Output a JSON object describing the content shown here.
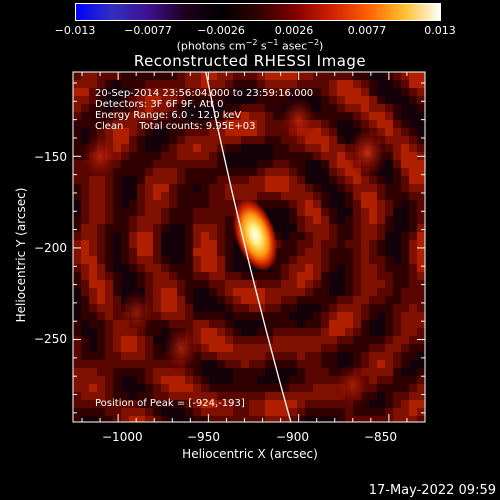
{
  "colorbar": {
    "ticks": [
      "−0.013",
      "−0.0077",
      "−0.0026",
      "0.0026",
      "0.0077",
      "0.013"
    ],
    "units_prefix": "(photons cm",
    "units_exp1": "−2",
    "units_mid1": " s",
    "units_exp2": "−1",
    "units_mid2": " asec",
    "units_exp3": "−2",
    "units_suffix": ")",
    "colormap": [
      "#0000ff",
      "#3030c0",
      "#401090",
      "#200020",
      "#000000",
      "#300000",
      "#800000",
      "#d02000",
      "#ff6000",
      "#ffc030",
      "#ffffff"
    ]
  },
  "title": "Reconstructed RHESSI Image",
  "info_lines": [
    "20-Sep-2014 23:56:04.000 to 23:59:16.000",
    "Detectors: 3F 6F 9F, Att 0",
    "Energy Range: 6.0 - 12.0 keV",
    "Clean     Total counts: 9.95E+03"
  ],
  "peak_text": "Position of Peak = [-924,-193]",
  "x_axis": {
    "label": "Heliocentric X (arcsec)",
    "tick_labels": [
      "−1000",
      "−950",
      "−900",
      "−850"
    ]
  },
  "y_axis": {
    "label": "Heliocentric Y (arcsec)",
    "tick_labels": [
      "−150",
      "−200",
      "−250"
    ]
  },
  "footer_timestamp": "17-May-2022 09:59",
  "chart_data": {
    "type": "heatmap",
    "title": "Reconstructed RHESSI Image",
    "xlabel": "Heliocentric X (arcsec)",
    "ylabel": "Heliocentric Y (arcsec)",
    "xlim": [
      -1025,
      -830
    ],
    "ylim": [
      -295,
      -104
    ],
    "x_ticks": [
      -1000,
      -950,
      -900,
      -850
    ],
    "y_ticks": [
      -150,
      -200,
      -250
    ],
    "colorbar_range": [
      -0.013,
      0.013
    ],
    "peak": {
      "x": -924,
      "y": -193
    },
    "bright_patches": [
      {
        "x": -900,
        "y": -130,
        "intensity": 0.35
      },
      {
        "x": -862,
        "y": -148,
        "intensity": 0.45
      },
      {
        "x": -1010,
        "y": -150,
        "intensity": 0.35
      },
      {
        "x": -990,
        "y": -235,
        "intensity": 0.3
      },
      {
        "x": -965,
        "y": -255,
        "intensity": 0.35
      },
      {
        "x": -870,
        "y": -275,
        "intensity": 0.3
      }
    ],
    "limb_curve": {
      "x_top": -950,
      "x_bottom": -904
    }
  }
}
